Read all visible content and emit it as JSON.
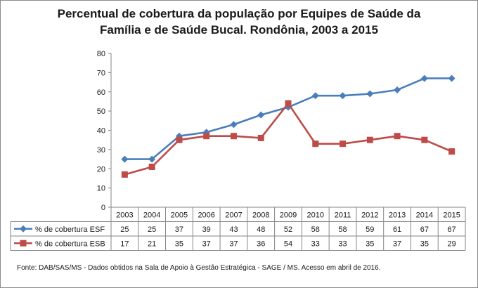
{
  "chart_data": {
    "type": "line",
    "title": "Percentual de cobertura da população por Equipes de Saúde da Família e de Saúde Bucal. Rondônia, 2003 a 2015",
    "title_lines": [
      "Percentual de cobertura da população por Equipes de Saúde da",
      "Família e de Saúde Bucal. Rondônia, 2003 a 2015"
    ],
    "categories": [
      "2003",
      "2004",
      "2005",
      "2006",
      "2007",
      "2008",
      "2009",
      "2010",
      "2011",
      "2012",
      "2013",
      "2014",
      "2015"
    ],
    "series": [
      {
        "name": "% de cobertura ESF",
        "color": "#4a7ebb",
        "marker": "diamond",
        "values": [
          25,
          25,
          37,
          39,
          43,
          48,
          52,
          58,
          58,
          59,
          61,
          67,
          67
        ]
      },
      {
        "name": "% de cobertura ESB",
        "color": "#be4b48",
        "marker": "square",
        "values": [
          17,
          21,
          35,
          37,
          37,
          36,
          54,
          33,
          33,
          35,
          37,
          35,
          29
        ]
      }
    ],
    "ylim": [
      0,
      80
    ],
    "yticks": [
      "0",
      "10",
      "20",
      "30",
      "40",
      "50",
      "60",
      "70",
      "80"
    ],
    "xlabel": "",
    "ylabel": "",
    "grid": false,
    "legend": "data-table-left"
  },
  "source_note": "Fonte:  DAB/SAS/MS - Dados obtidos na Sala de Apoio à Gestão Estratégica - SAGE / MS. Acesso em abril de 2016."
}
